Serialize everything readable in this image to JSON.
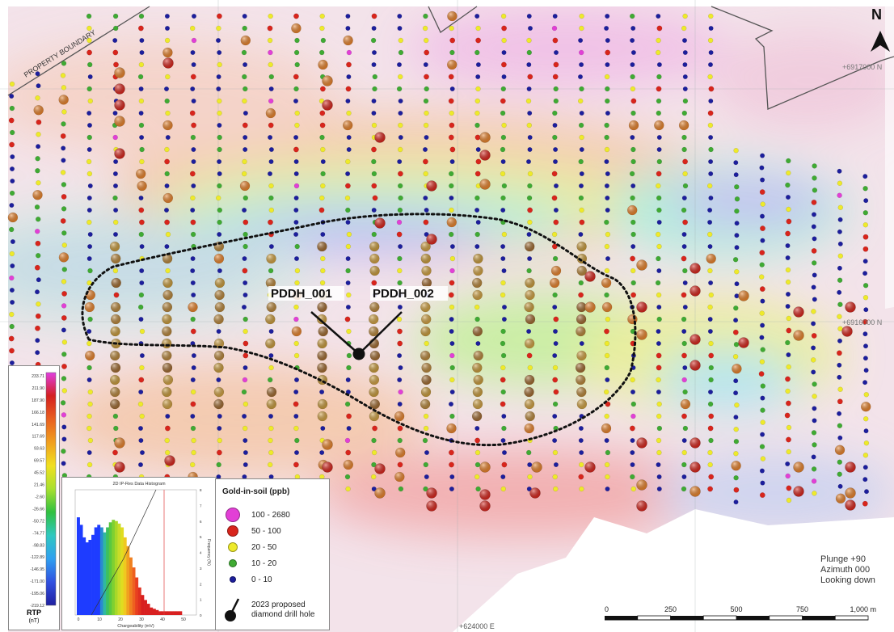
{
  "map": {
    "property_boundary_label": "PROPERTY BOUNDARY",
    "north_label": "N",
    "drill_holes": [
      {
        "name": "PDDH_001"
      },
      {
        "name": "PDDH_002"
      }
    ],
    "coordinates": {
      "northing_top": "+6917000 N",
      "northing_mid": "+6916000 N",
      "easting_bottom": "+624000 E"
    },
    "view": {
      "plunge": "Plunge +90",
      "azimuth": "Azimuth 000",
      "looking": "Looking down"
    },
    "scale": {
      "ticks": [
        "0",
        "250",
        "500",
        "750",
        "1,000 m"
      ]
    }
  },
  "rtp_legend": {
    "title": "RTP",
    "unit": "(nT)",
    "values": [
      "233.71",
      "211.90",
      "187.90",
      "166.18",
      "141.69",
      "117.69",
      "93.63",
      "69.57",
      "45.52",
      "21.46",
      "-2.60",
      "-26.66",
      "-50.72",
      "-74.77",
      "-98.83",
      "-122.89",
      "-146.95",
      "-171.00",
      "-195.06",
      "-219.12"
    ]
  },
  "histogram": {
    "title": "2D IP-Res Data Histogram",
    "xlabel": "Chargeability (mV)",
    "ylabel": "Frequency (%)",
    "x_ticks": [
      "0",
      "10",
      "20",
      "30",
      "40",
      "50"
    ],
    "y_ticks": [
      "0",
      "1",
      "2",
      "3",
      "4",
      "5",
      "6",
      "7",
      "8"
    ]
  },
  "gold_legend": {
    "title": "Gold-in-soil (ppb)",
    "classes": [
      {
        "label": "100 - 2680",
        "color": "#e23fd6"
      },
      {
        "label": "50 - 100",
        "color": "#d8251c"
      },
      {
        "label": "20 - 50",
        "color": "#eeea2a"
      },
      {
        "label": "10 - 20",
        "color": "#3faa33"
      },
      {
        "label": "0 - 10",
        "color": "#1c1e9c"
      }
    ],
    "drill_label_1": "2023 proposed",
    "drill_label_2": "diamond drill hole"
  }
}
